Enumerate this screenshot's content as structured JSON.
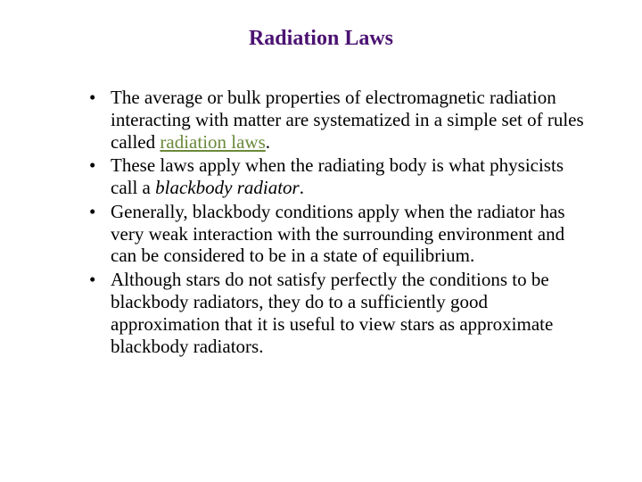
{
  "slide": {
    "title": "Radiation Laws",
    "title_color": "#4b1272",
    "title_fontsize": 24,
    "body_color": "#000000",
    "body_fontsize": 21,
    "link_color": "#6a8a3a",
    "background_color": "#ffffff",
    "bullets": [
      {
        "pre": "The average or bulk properties of electromagnetic radiation interacting with matter are systematized in a simple set of rules called ",
        "link": "radiation laws",
        "post": "."
      },
      {
        "pre": "These laws apply when the radiating body is what physicists call a ",
        "italic": "blackbody radiator",
        "post": "."
      },
      {
        "text": "Generally, blackbody conditions apply when the radiator has very weak interaction with the surrounding environment and can be considered to be in a state of equilibrium."
      },
      {
        "text": "Although stars do not satisfy perfectly the conditions to be blackbody radiators, they do to a sufficiently good approximation that it is useful to view stars as approximate blackbody radiators."
      }
    ]
  }
}
